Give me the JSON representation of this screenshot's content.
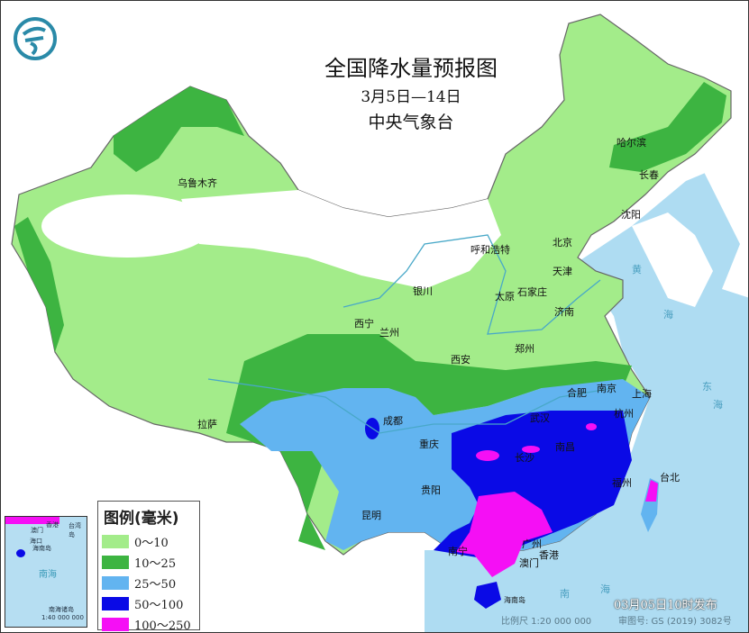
{
  "header": {
    "title": "全国降水量预报图",
    "period": "3月5日—14日",
    "issuer": "中央气象台"
  },
  "cities": [
    {
      "name": "乌鲁木齐"
    },
    {
      "name": "哈尔滨"
    },
    {
      "name": "长春"
    },
    {
      "name": "沈阳"
    },
    {
      "name": "北京"
    },
    {
      "name": "天津"
    },
    {
      "name": "呼和浩特"
    },
    {
      "name": "银川"
    },
    {
      "name": "太原"
    },
    {
      "name": "石家庄"
    },
    {
      "name": "济南"
    },
    {
      "name": "西宁"
    },
    {
      "name": "兰州"
    },
    {
      "name": "西安"
    },
    {
      "name": "郑州"
    },
    {
      "name": "合肥"
    },
    {
      "name": "南京"
    },
    {
      "name": "上海"
    },
    {
      "name": "杭州"
    },
    {
      "name": "武汉"
    },
    {
      "name": "南昌"
    },
    {
      "name": "长沙"
    },
    {
      "name": "福州"
    },
    {
      "name": "台北"
    },
    {
      "name": "成都"
    },
    {
      "name": "重庆"
    },
    {
      "name": "贵阳"
    },
    {
      "name": "昆明"
    },
    {
      "name": "拉萨"
    },
    {
      "name": "南宁"
    },
    {
      "name": "广州"
    },
    {
      "name": "香港"
    },
    {
      "name": "澳门"
    },
    {
      "name": "海南岛"
    }
  ],
  "seas": [
    "黄",
    "海",
    "东",
    "海",
    "南",
    "海"
  ],
  "legend": {
    "title": "图例(毫米)",
    "items": [
      {
        "label": "0～10",
        "color": "#a3ec8a"
      },
      {
        "label": "10～25",
        "color": "#3db441"
      },
      {
        "label": "25～50",
        "color": "#62b4f0"
      },
      {
        "label": "50～100",
        "color": "#0a0ae6"
      },
      {
        "label": "100～250",
        "color": "#f50ff5"
      }
    ]
  },
  "inset": {
    "labels": [
      "澳门",
      "香港",
      "台湾岛",
      "海口",
      "海南岛",
      "南海",
      "南海诸岛",
      "1:40 000 000"
    ]
  },
  "footer": {
    "issued": "03月05日10时发布",
    "scale": "比例尺 1:20 000 000",
    "map_number": "审图号: GS (2019) 3082号"
  }
}
